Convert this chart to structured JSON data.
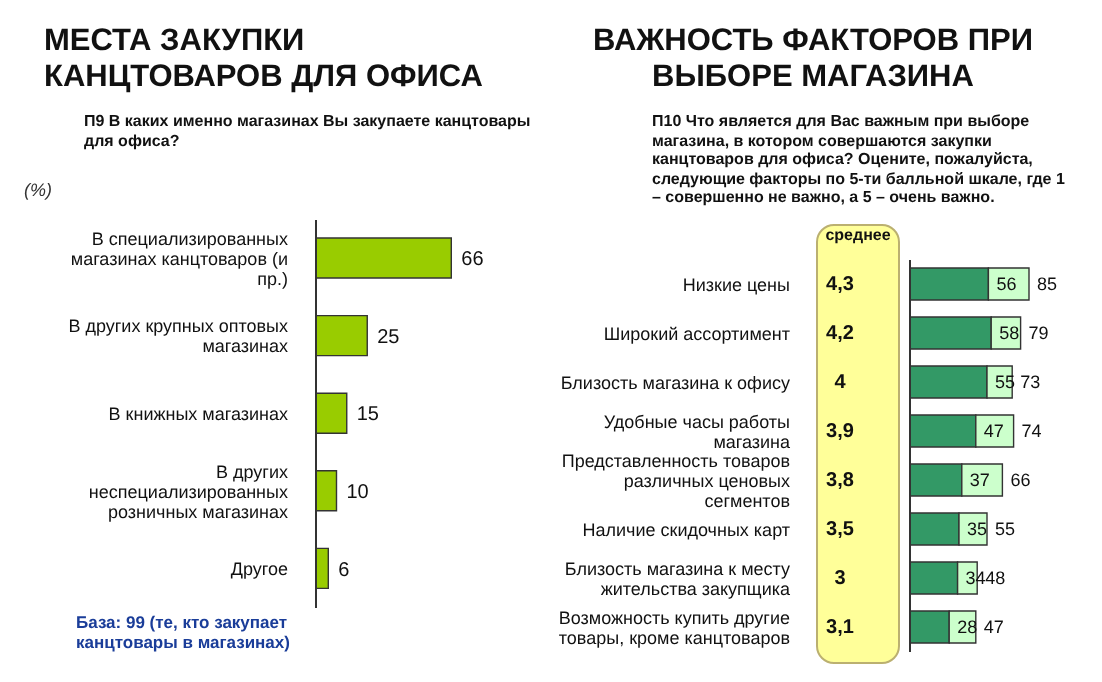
{
  "chart_data": [
    {
      "type": "bar",
      "orientation": "horizontal",
      "title": "МЕСТА ЗАКУПКИ КАНЦТОВАРОВ ДЛЯ ОФИСА",
      "subtitle": "П9 В каких именно магазинах Вы закупаете канцтовары для офиса?",
      "categories": [
        "В специализированных магазинах канцтоваров (и пр.)",
        "В других крупных оптовых магазинах",
        "В книжных магазинах",
        "В других неспециализированных розничных магазинах",
        "Другое"
      ],
      "values": [
        66,
        25,
        15,
        10,
        6
      ],
      "color": "#99cc00",
      "tick_labels": "y",
      "data_labels": true,
      "annotations": [
        "(%)",
        "База: 99 (те, кто закупает канцтовары в магазинах)"
      ]
    },
    {
      "type": "bar",
      "orientation": "horizontal",
      "stacked": true,
      "title": "ВАЖНОСТЬ ФАКТОРОВ ПРИ ВЫБОРЕ МАГАЗИНА",
      "subtitle": "П10 Что является для Вас важным при выборе магазина, в котором совершаются закупки канцтоваров для офиса? Оцените, пожалуйста, следующие факторы по 5-ти балльной шкале, где 1 – совершенно не важно, а 5 – очень важно.",
      "categories": [
        "Низкие цены",
        "Широкий ассортимент",
        "Близость магазина к офису",
        "Удобные часы работы магазина",
        "Представленность товаров различных ценовых сегментов",
        "Наличие скидочных карт",
        "Близость магазина к месту жительства закупщика",
        "Возможность купить другие товары, кроме канцтоваров"
      ],
      "series": [
        {
          "color": "#339966",
          "values": [
            56,
            58,
            55,
            47,
            37,
            35,
            34,
            28
          ],
          "value_labels": [
            "56",
            "58",
            "55",
            "47",
            "37",
            "35",
            "34",
            "28"
          ]
        },
        {
          "color": "#ccffcc",
          "values": [
            29,
            21,
            18,
            27,
            29,
            20,
            14,
            19
          ]
        }
      ],
      "totals": [
        "85",
        "79",
        "73",
        "74",
        "66",
        "55",
        "48",
        "47"
      ],
      "tick_labels": "y",
      "annotations": [
        "среднее",
        "4,3",
        "4,2",
        "4",
        "3,9",
        "3,8",
        "3,5",
        "3",
        "3,1"
      ]
    }
  ]
}
